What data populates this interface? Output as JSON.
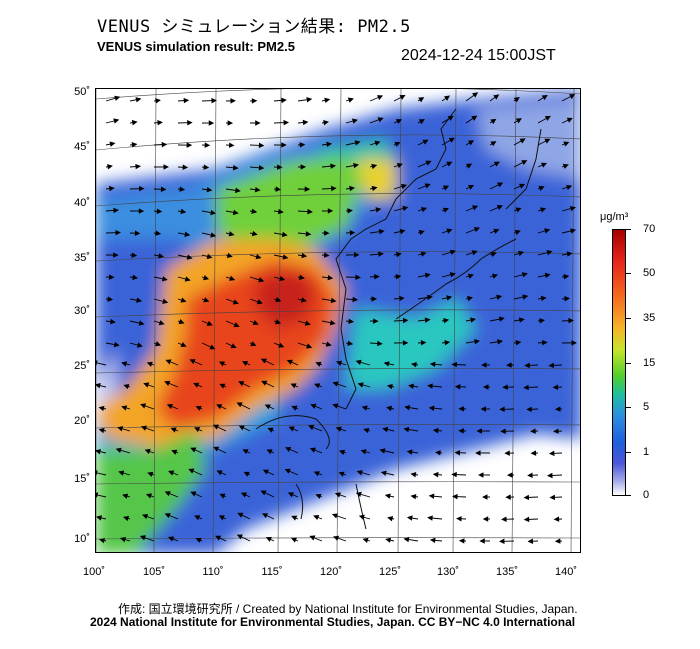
{
  "header": {
    "title_jp": "VENUS シミュレーション結果: PM2.5",
    "title_en": "VENUS simulation result: PM2.5",
    "timestamp": "2024-12-24 15:00JST"
  },
  "map": {
    "lat_labels": [
      "50˚",
      "45˚",
      "40˚",
      "35˚",
      "30˚",
      "25˚",
      "20˚",
      "15˚",
      "10˚"
    ],
    "lon_labels": [
      "100˚",
      "105˚",
      "110˚",
      "115˚",
      "120˚",
      "125˚",
      "130˚",
      "135˚",
      "140˚"
    ],
    "lat_range": [
      9,
      51
    ],
    "lon_range": [
      100,
      141
    ]
  },
  "colorbar": {
    "unit": "μg/m³",
    "ticks": [
      "70",
      "50",
      "35",
      "15",
      "5",
      "1",
      "0"
    ],
    "colors": [
      "#a60000",
      "#e8251b",
      "#f7b42b",
      "#52cf2c",
      "#2d8fe0",
      "#4a56d8",
      "#ffffff"
    ]
  },
  "footer": {
    "credit": "作成: 国立環境研究所 / Created by National Institute for Environmental Studies, Japan.",
    "license": "2024 National Institute for Environmental Studies, Japan. CC BY−NC 4.0 International"
  }
}
